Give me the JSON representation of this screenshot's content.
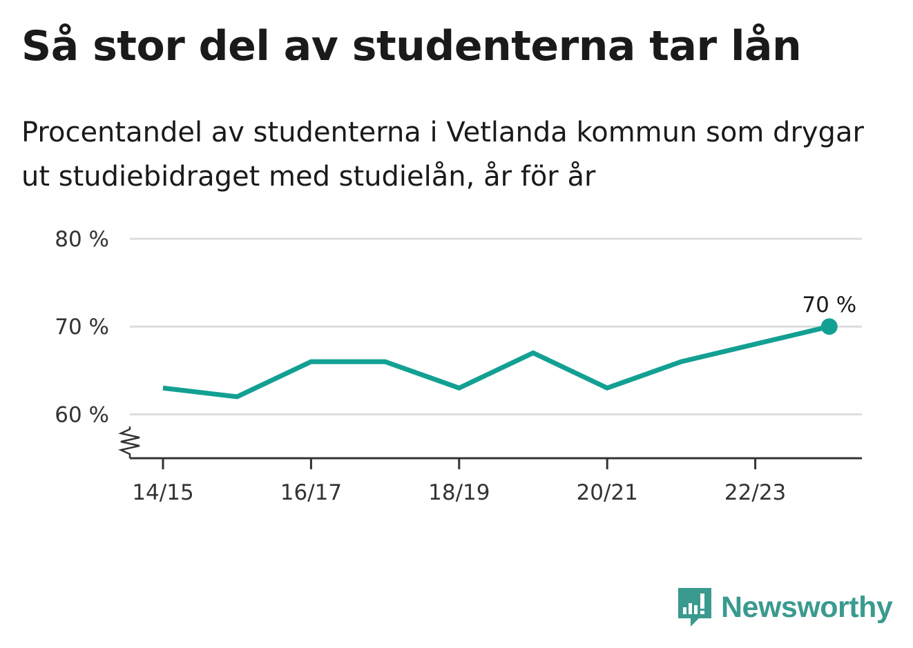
{
  "title": "Så stor del av studenterna tar lån",
  "subtitle": "Procentandel av studenterna i Vetlanda kommun som drygar ut studiebidraget med studielån, år för år",
  "brand": "Newsworthy",
  "colors": {
    "line": "#12a093",
    "grid": "#dcdcdc",
    "axis": "#333333",
    "brand": "#3a9a8f"
  },
  "chart_data": {
    "type": "line",
    "x": [
      "14/15",
      "15/16",
      "16/17",
      "17/18",
      "18/19",
      "19/20",
      "20/21",
      "21/22",
      "22/23",
      "23/24"
    ],
    "values": [
      63,
      62,
      66,
      66,
      63,
      67,
      63,
      66,
      68,
      70
    ],
    "x_tick_labels": [
      "14/15",
      "16/17",
      "18/19",
      "20/21",
      "22/23"
    ],
    "y_ticks": [
      60,
      70,
      80
    ],
    "y_tick_labels": [
      "60 %",
      "70 %",
      "80 %"
    ],
    "ylim": [
      55,
      80
    ],
    "y_axis_broken": true,
    "end_label": "70 %",
    "grid": true
  }
}
